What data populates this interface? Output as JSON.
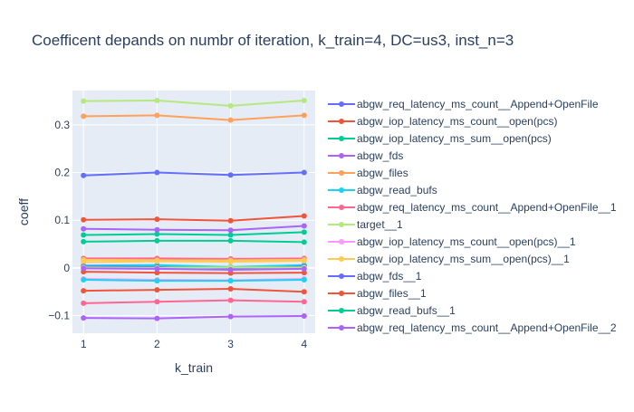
{
  "chart_data": {
    "type": "line",
    "title": "Coefficent depands on numbr of iteration, k_train=4, DC=us3, inst_n=3",
    "xlabel": "k_train",
    "ylabel": "coeff",
    "x": [
      1,
      2,
      3,
      4
    ],
    "x_ticks": [
      1,
      2,
      3,
      4
    ],
    "y_ticks": [
      -0.1,
      0,
      0.1,
      0.2,
      0.3
    ],
    "y_tick_labels": [
      "−0.1",
      "0",
      "0.1",
      "0.2",
      "0.3"
    ],
    "xlim": [
      0.85,
      4.15
    ],
    "ylim": [
      -0.137,
      0.372
    ],
    "grid": true,
    "legend_position": "right",
    "plot_background": "#e5ecf6",
    "series": [
      {
        "name": "abgw_req_latency_ms_count__Append+OpenFile",
        "color": "#636efa",
        "values": [
          0.194,
          0.2,
          0.195,
          0.2
        ]
      },
      {
        "name": "abgw_iop_latency_ms_count__open(pcs)",
        "color": "#ef553b",
        "values": [
          0.101,
          0.102,
          0.099,
          0.109
        ]
      },
      {
        "name": "abgw_iop_latency_ms_sum__open(pcs)",
        "color": "#00cc96",
        "values": [
          0.069,
          0.071,
          0.069,
          0.075
        ]
      },
      {
        "name": "abgw_fds",
        "color": "#ab63fa",
        "values": [
          0.082,
          0.08,
          0.079,
          0.088
        ]
      },
      {
        "name": "abgw_files",
        "color": "#ffa15a",
        "values": [
          0.318,
          0.32,
          0.31,
          0.32
        ]
      },
      {
        "name": "abgw_read_bufs",
        "color": "#19d3f3",
        "values": [
          0.005,
          0.006,
          0.002,
          0.006
        ]
      },
      {
        "name": "abgw_req_latency_ms_count__Append+OpenFile__1",
        "color": "#ff6692",
        "values": [
          0.02,
          0.02,
          0.019,
          0.02
        ]
      },
      {
        "name": "target__1",
        "color": "#b6e880",
        "values": [
          0.35,
          0.351,
          0.34,
          0.351
        ]
      },
      {
        "name": "abgw_iop_latency_ms_count__open(pcs)__1",
        "color": "#ff97ff",
        "values": [
          -0.023,
          -0.025,
          -0.026,
          -0.023
        ]
      },
      {
        "name": "abgw_iop_latency_ms_sum__open(pcs)__1",
        "color": "#fecb52",
        "values": [
          0.012,
          0.014,
          0.013,
          0.015
        ]
      },
      {
        "name": "abgw_fds__1",
        "color": "#636efa",
        "values": [
          0.003,
          0.002,
          -0.002,
          0.003
        ]
      },
      {
        "name": "abgw_files__1",
        "color": "#ef553b",
        "values": [
          -0.048,
          -0.046,
          -0.044,
          -0.05
        ]
      },
      {
        "name": "abgw_read_bufs__1",
        "color": "#00cc96",
        "values": [
          0.055,
          0.057,
          0.057,
          0.054
        ]
      },
      {
        "name": "abgw_req_latency_ms_count__Append+OpenFile__2",
        "color": "#ab63fa",
        "values": [
          -0.105,
          -0.106,
          -0.102,
          -0.101
        ]
      },
      {
        "color": "#ff6692",
        "values": [
          -0.074,
          -0.071,
          -0.068,
          -0.071
        ]
      },
      {
        "color": "#ef553b",
        "values": [
          -0.008,
          -0.01,
          -0.011,
          -0.01
        ]
      },
      {
        "color": "#19d3f3",
        "values": [
          -0.025,
          -0.027,
          -0.027,
          -0.025
        ]
      },
      {
        "color": "#b6e880",
        "values": [
          0.001,
          0.0,
          0.001,
          0.001
        ]
      },
      {
        "color": "#ab63fa",
        "values": [
          -0.001,
          -0.002,
          -0.004,
          -0.002
        ]
      },
      {
        "color": "#fecb52",
        "values": [
          0.017,
          0.016,
          0.016,
          0.017
        ]
      }
    ]
  }
}
